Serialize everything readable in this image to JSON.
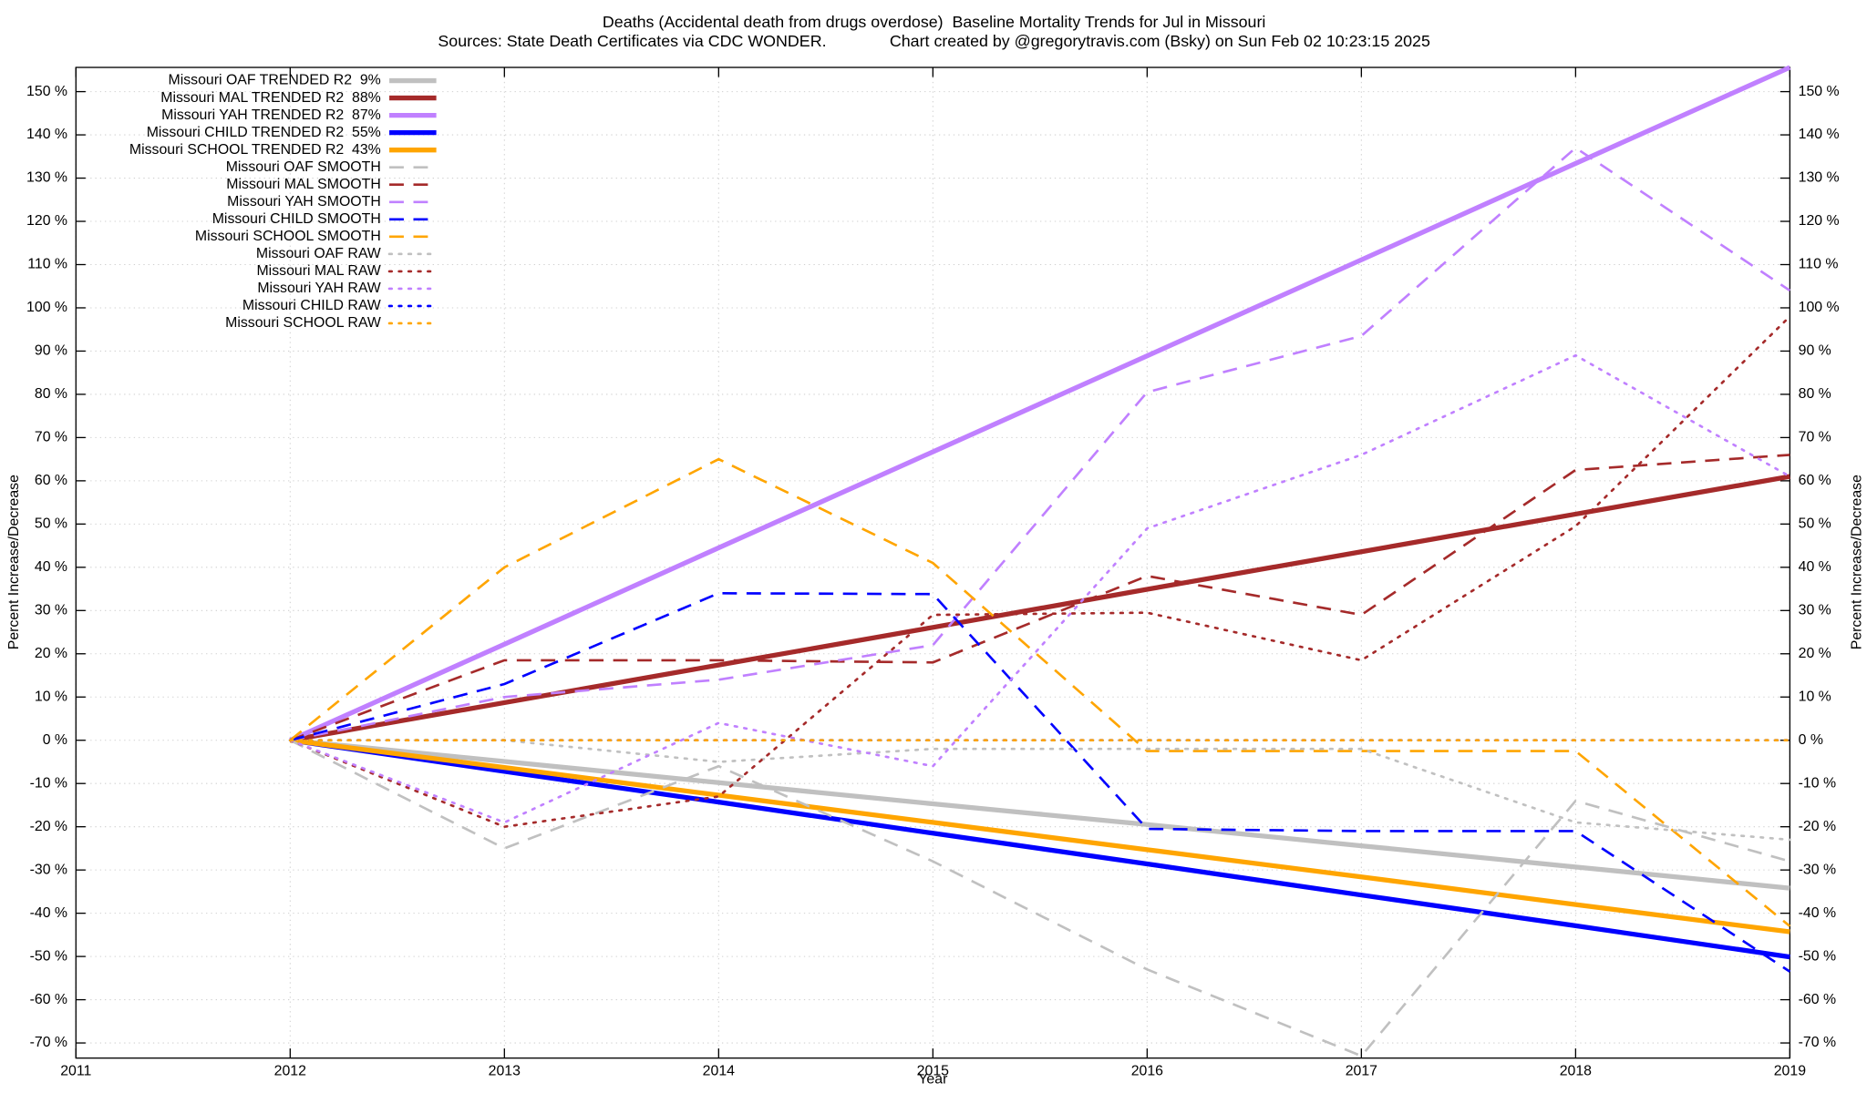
{
  "chart_data": {
    "type": "line",
    "title": "Deaths (Accidental death from drugs overdose)  Baseline Mortality Trends for Jul in Missouri",
    "subtitle": "Sources: State Death Certificates via CDC WONDER.              Chart created by @gregorytravis.com (Bsky) on Sun Feb 02 10:23:15 2025",
    "x_label": "Year",
    "y_label": "Percent Increase/Decrease",
    "x": [
      2012,
      2013,
      2014,
      2015,
      2016,
      2017,
      2018,
      2019
    ],
    "xlim": [
      2011,
      2019
    ],
    "xticks": [
      2011,
      2012,
      2013,
      2014,
      2015,
      2016,
      2017,
      2018,
      2019
    ],
    "ylim": [
      -73.5,
      155.6
    ],
    "yticks": [
      {
        "value": -70,
        "label": "-70 %"
      },
      {
        "value": -60,
        "label": "-60 %"
      },
      {
        "value": -50,
        "label": "-50 %"
      },
      {
        "value": -40,
        "label": "-40 %"
      },
      {
        "value": -30,
        "label": "-30 %"
      },
      {
        "value": -20,
        "label": "-20 %"
      },
      {
        "value": -10,
        "label": "-10 %"
      },
      {
        "value": 0,
        "label": "0 %"
      },
      {
        "value": 10,
        "label": "10 %"
      },
      {
        "value": 20,
        "label": "20 %"
      },
      {
        "value": 30,
        "label": "30 %"
      },
      {
        "value": 40,
        "label": "40 %"
      },
      {
        "value": 50,
        "label": "50 %"
      },
      {
        "value": 60,
        "label": "60 %"
      },
      {
        "value": 70,
        "label": "70 %"
      },
      {
        "value": 80,
        "label": "80 %"
      },
      {
        "value": 90,
        "label": "90 %"
      },
      {
        "value": 100,
        "label": "100 %"
      },
      {
        "value": 110,
        "label": "110 %"
      },
      {
        "value": 120,
        "label": "120 %"
      },
      {
        "value": 130,
        "label": "130 %"
      },
      {
        "value": 140,
        "label": "140 %"
      },
      {
        "value": 150,
        "label": "150 %"
      }
    ],
    "grid": true,
    "legend": "upper left",
    "series": [
      {
        "name": "Missouri OAF TRENDED R2  9%",
        "color": "#c0c0c0",
        "style": "solid",
        "values": [
          0,
          -4.9,
          -9.8,
          -14.7,
          -19.5,
          -24.4,
          -29.3,
          -34.2
        ]
      },
      {
        "name": "Missouri MAL TRENDED R2  88%",
        "color": "#a52a2a",
        "style": "solid",
        "values": [
          0,
          8.7,
          17.4,
          26.1,
          34.9,
          43.6,
          52.3,
          61.0
        ]
      },
      {
        "name": "Missouri YAH TRENDED R2  87%",
        "color": "#c080ff",
        "style": "solid",
        "values": [
          0,
          22.2,
          44.5,
          66.7,
          88.9,
          111.1,
          133.4,
          155.6
        ]
      },
      {
        "name": "Missouri CHILD TRENDED R2  55%",
        "color": "#0000ff",
        "style": "solid",
        "values": [
          0,
          -7.2,
          -14.3,
          -21.5,
          -28.6,
          -35.8,
          -42.9,
          -50.1
        ]
      },
      {
        "name": "Missouri SCHOOL TRENDED R2  43%",
        "color": "#ffa500",
        "style": "solid",
        "values": [
          0,
          -6.3,
          -12.7,
          -19.0,
          -25.3,
          -31.6,
          -38.0,
          -44.3
        ]
      },
      {
        "name": "Missouri OAF SMOOTH",
        "color": "#c0c0c0",
        "style": "dashed",
        "values": [
          0,
          -25,
          -6,
          -28,
          -53,
          -73,
          -14,
          -28
        ]
      },
      {
        "name": "Missouri MAL SMOOTH",
        "color": "#a52a2a",
        "style": "dashed",
        "values": [
          0,
          18.5,
          18.5,
          18,
          38,
          29,
          62.5,
          66
        ]
      },
      {
        "name": "Missouri YAH SMOOTH",
        "color": "#c080ff",
        "style": "dashed",
        "values": [
          0,
          10,
          14,
          22,
          80.5,
          93.5,
          137,
          104
        ]
      },
      {
        "name": "Missouri CHILD SMOOTH",
        "color": "#0000ff",
        "style": "dashed",
        "values": [
          0,
          13,
          34,
          33.8,
          -20.5,
          -21,
          -21,
          -53.5
        ]
      },
      {
        "name": "Missouri SCHOOL SMOOTH",
        "color": "#ffa500",
        "style": "dashed",
        "values": [
          0,
          40,
          65,
          41,
          -2.5,
          -2.5,
          -2.5,
          -43
        ]
      },
      {
        "name": "Missouri OAF RAW",
        "color": "#c0c0c0",
        "style": "dotted",
        "values": [
          0,
          0,
          -5,
          -2,
          -2,
          -2,
          -19,
          -23
        ]
      },
      {
        "name": "Missouri MAL RAW",
        "color": "#a52a2a",
        "style": "dotted",
        "values": [
          0,
          -20,
          -13,
          29,
          29.5,
          18.5,
          49.5,
          98
        ]
      },
      {
        "name": "Missouri YAH RAW",
        "color": "#c080ff",
        "style": "dotted",
        "values": [
          0,
          -19,
          4,
          -6,
          49,
          66,
          89,
          61
        ]
      },
      {
        "name": "Missouri CHILD RAW",
        "color": "#0000ff",
        "style": "dotted",
        "values": [
          0,
          0,
          0,
          0,
          0,
          0,
          0,
          0
        ]
      },
      {
        "name": "Missouri SCHOOL RAW",
        "color": "#ffa500",
        "style": "dotted",
        "values": [
          0,
          0,
          0,
          0,
          0,
          0,
          0,
          0
        ]
      }
    ]
  }
}
